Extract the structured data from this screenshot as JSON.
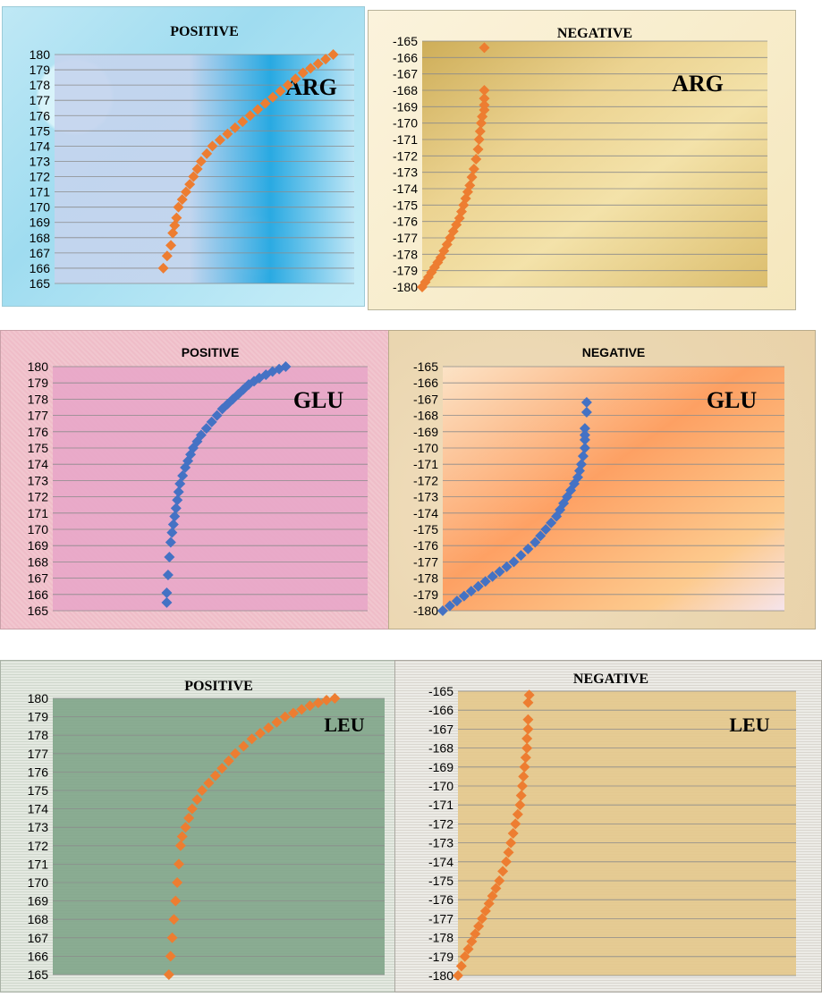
{
  "colors": {
    "orange": "#ed7d31",
    "blue": "#4472c4",
    "grid": "#8b8b8b",
    "axis_text": "#000000"
  },
  "chart_data": [
    {
      "type": "scatter",
      "title": "POSITIVE",
      "annotation": "ARG",
      "marker_color": "#ed7d31",
      "ylim": [
        165,
        180
      ],
      "yticks": [
        180,
        179,
        178,
        177,
        176,
        175,
        174,
        173,
        172,
        171,
        170,
        169,
        168,
        167,
        166,
        165
      ],
      "x": [
        0.1,
        0.12,
        0.14,
        0.15,
        0.16,
        0.17,
        0.18,
        0.2,
        0.22,
        0.24,
        0.26,
        0.28,
        0.3,
        0.33,
        0.36,
        0.4,
        0.44,
        0.48,
        0.52,
        0.56,
        0.6,
        0.64,
        0.68,
        0.72,
        0.76,
        0.8,
        0.84,
        0.88,
        0.92,
        0.96,
        1.0
      ],
      "y": [
        166.0,
        166.8,
        167.5,
        168.3,
        168.8,
        169.3,
        170.0,
        170.5,
        171.0,
        171.5,
        172.0,
        172.5,
        173.0,
        173.5,
        174.0,
        174.4,
        174.8,
        175.2,
        175.6,
        176.0,
        176.4,
        176.8,
        177.2,
        177.6,
        178.0,
        178.4,
        178.8,
        179.1,
        179.4,
        179.7,
        180.0
      ]
    },
    {
      "type": "scatter",
      "title": "NEGATIVE",
      "annotation": "ARG",
      "marker_color": "#ed7d31",
      "ylim": [
        -180,
        -165
      ],
      "yticks": [
        -165,
        -166,
        -167,
        -168,
        -169,
        -170,
        -171,
        -172,
        -173,
        -174,
        -175,
        -176,
        -177,
        -178,
        -179,
        -180
      ],
      "x": [
        0.0,
        0.03,
        0.06,
        0.09,
        0.12,
        0.15,
        0.18,
        0.21,
        0.24,
        0.27,
        0.3,
        0.33,
        0.36,
        0.38,
        0.4,
        0.42,
        0.44,
        0.46,
        0.48,
        0.5,
        0.52,
        0.54,
        0.55,
        0.56,
        0.57,
        0.58,
        0.6,
        0.6,
        0.6,
        0.6,
        0.6
      ],
      "y": [
        -180.0,
        -179.7,
        -179.4,
        -179.1,
        -178.8,
        -178.5,
        -178.2,
        -177.8,
        -177.4,
        -177.0,
        -176.6,
        -176.2,
        -175.8,
        -175.4,
        -175.0,
        -174.6,
        -174.2,
        -173.8,
        -173.3,
        -172.8,
        -172.2,
        -171.6,
        -171.0,
        -170.5,
        -170.0,
        -169.6,
        -169.2,
        -168.9,
        -168.5,
        -168.0,
        -165.4
      ]
    },
    {
      "type": "scatter",
      "title": "POSITIVE",
      "annotation": "GLU",
      "marker_color": "#4472c4",
      "ylim": [
        165,
        180
      ],
      "yticks": [
        180,
        179,
        178,
        177,
        176,
        175,
        174,
        173,
        172,
        171,
        170,
        169,
        168,
        167,
        166,
        165
      ],
      "x": [
        0.1,
        0.1,
        0.11,
        0.12,
        0.13,
        0.14,
        0.15,
        0.16,
        0.17,
        0.18,
        0.19,
        0.2,
        0.22,
        0.24,
        0.26,
        0.28,
        0.3,
        0.33,
        0.36,
        0.4,
        0.44,
        0.48,
        0.52,
        0.56,
        0.6,
        0.64,
        0.68,
        0.72,
        0.76,
        0.8,
        0.85,
        0.9,
        0.95,
        1.0
      ],
      "y": [
        165.5,
        166.1,
        167.2,
        168.3,
        169.2,
        169.8,
        170.3,
        170.8,
        171.3,
        171.8,
        172.3,
        172.8,
        173.3,
        173.8,
        174.2,
        174.6,
        175.0,
        175.4,
        175.8,
        176.2,
        176.6,
        177.0,
        177.4,
        177.7,
        178.0,
        178.3,
        178.6,
        178.9,
        179.1,
        179.3,
        179.5,
        179.7,
        179.85,
        180.0
      ]
    },
    {
      "type": "scatter",
      "title": "NEGATIVE",
      "annotation": "GLU",
      "marker_color": "#4472c4",
      "ylim": [
        -180,
        -165
      ],
      "yticks": [
        -165,
        -166,
        -167,
        -168,
        -169,
        -170,
        -171,
        -172,
        -173,
        -174,
        -175,
        -176,
        -177,
        -178,
        -179,
        -180
      ],
      "x": [
        0.0,
        0.04,
        0.08,
        0.12,
        0.16,
        0.2,
        0.24,
        0.28,
        0.32,
        0.36,
        0.4,
        0.44,
        0.48,
        0.52,
        0.55,
        0.58,
        0.61,
        0.64,
        0.66,
        0.68,
        0.7,
        0.72,
        0.74,
        0.76,
        0.77,
        0.78,
        0.79,
        0.8,
        0.8,
        0.8,
        0.8,
        0.81,
        0.81
      ],
      "y": [
        -180.0,
        -179.7,
        -179.4,
        -179.1,
        -178.8,
        -178.5,
        -178.2,
        -177.9,
        -177.6,
        -177.3,
        -177.0,
        -176.6,
        -176.2,
        -175.8,
        -175.4,
        -175.0,
        -174.6,
        -174.2,
        -173.8,
        -173.4,
        -173.0,
        -172.6,
        -172.2,
        -171.8,
        -171.4,
        -171.0,
        -170.5,
        -170.0,
        -169.5,
        -169.2,
        -168.8,
        -167.8,
        -167.2
      ]
    },
    {
      "type": "scatter",
      "title": "POSITIVE",
      "annotation": "LEU",
      "marker_color": "#ed7d31",
      "ylim": [
        165,
        180
      ],
      "yticks": [
        180,
        179,
        178,
        177,
        176,
        175,
        174,
        173,
        172,
        171,
        170,
        169,
        168,
        167,
        166,
        165
      ],
      "x": [
        0.0,
        0.01,
        0.02,
        0.03,
        0.04,
        0.05,
        0.06,
        0.07,
        0.08,
        0.1,
        0.12,
        0.14,
        0.17,
        0.2,
        0.24,
        0.28,
        0.32,
        0.36,
        0.4,
        0.45,
        0.5,
        0.55,
        0.6,
        0.65,
        0.7,
        0.75,
        0.8,
        0.85,
        0.9,
        0.95,
        1.0
      ],
      "y": [
        165.0,
        166.0,
        167.0,
        168.0,
        169.0,
        170.0,
        171.0,
        172.0,
        172.5,
        173.0,
        173.5,
        174.0,
        174.5,
        175.0,
        175.4,
        175.8,
        176.2,
        176.6,
        177.0,
        177.4,
        177.8,
        178.1,
        178.4,
        178.7,
        179.0,
        179.2,
        179.4,
        179.6,
        179.75,
        179.9,
        180.0
      ]
    },
    {
      "type": "scatter",
      "title": "NEGATIVE",
      "annotation": "LEU",
      "marker_color": "#ed7d31",
      "ylim": [
        -180,
        -165
      ],
      "yticks": [
        -165,
        -166,
        -167,
        -168,
        -169,
        -170,
        -171,
        -172,
        -173,
        -174,
        -175,
        -176,
        -177,
        -178,
        -179,
        -180
      ],
      "x": [
        0.0,
        0.03,
        0.06,
        0.09,
        0.12,
        0.15,
        0.18,
        0.21,
        0.24,
        0.27,
        0.3,
        0.33,
        0.36,
        0.39,
        0.42,
        0.44,
        0.46,
        0.48,
        0.5,
        0.52,
        0.54,
        0.55,
        0.56,
        0.57,
        0.58,
        0.59,
        0.6,
        0.6,
        0.61,
        0.61,
        0.61,
        0.62
      ],
      "y": [
        -180.0,
        -179.5,
        -179.0,
        -178.6,
        -178.2,
        -177.8,
        -177.4,
        -177.0,
        -176.6,
        -176.2,
        -175.8,
        -175.4,
        -175.0,
        -174.5,
        -174.0,
        -173.5,
        -173.0,
        -172.5,
        -172.0,
        -171.5,
        -171.0,
        -170.5,
        -170.0,
        -169.5,
        -169.0,
        -168.5,
        -168.0,
        -167.5,
        -167.0,
        -166.5,
        -165.6,
        -165.2
      ]
    }
  ]
}
